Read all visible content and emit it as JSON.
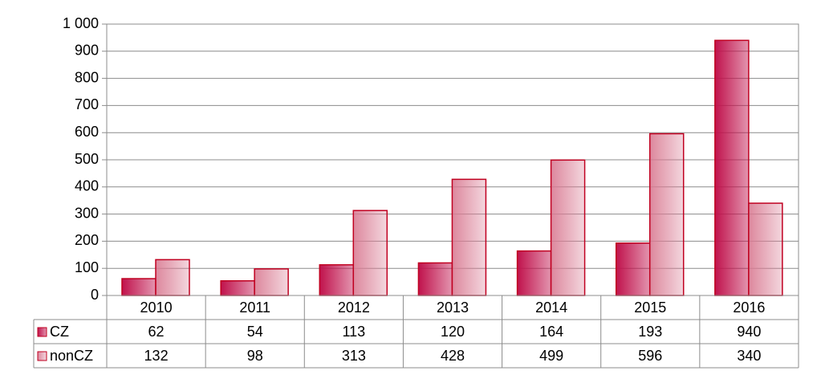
{
  "chart_data": {
    "type": "bar",
    "categories": [
      "2010",
      "2011",
      "2012",
      "2013",
      "2014",
      "2015",
      "2016"
    ],
    "series": [
      {
        "name": "CZ",
        "color": "#c0124c",
        "values": [
          62,
          54,
          113,
          120,
          164,
          193,
          940
        ]
      },
      {
        "name": "nonCZ",
        "color": "#d97a92",
        "values": [
          132,
          98,
          313,
          428,
          499,
          596,
          340
        ]
      }
    ],
    "ylim": [
      0,
      1000
    ],
    "yticks": [
      0,
      100,
      200,
      300,
      400,
      500,
      600,
      700,
      800,
      900,
      {
        "value": 1000,
        "label": "1 000"
      }
    ],
    "grid": true
  }
}
